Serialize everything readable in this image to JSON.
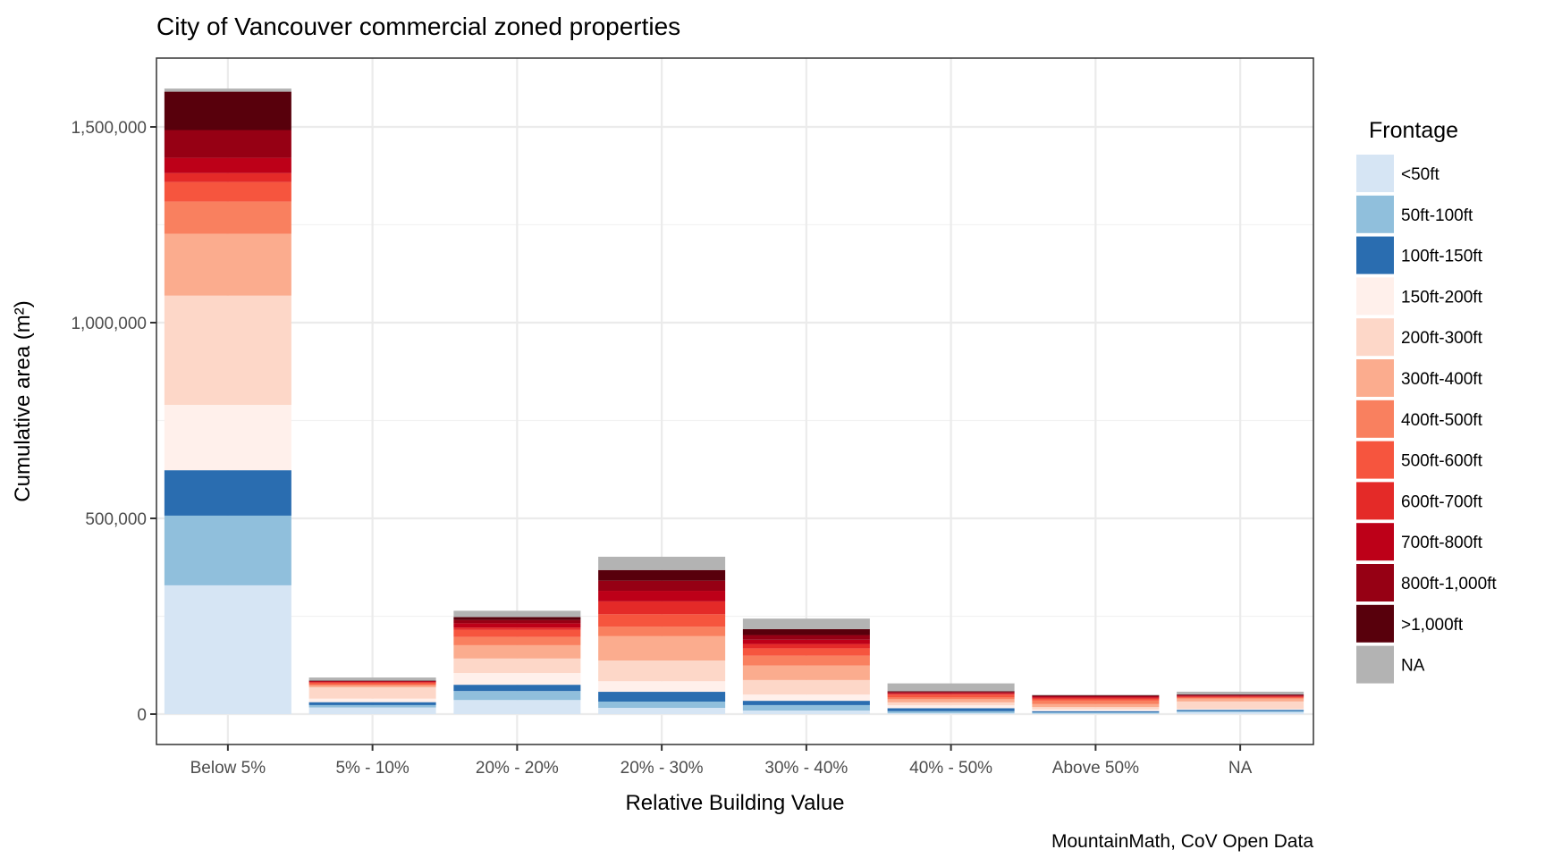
{
  "chart_data": {
    "type": "bar",
    "stacked": true,
    "title": "City of Vancouver commercial zoned properties",
    "xlabel": "Relative Building Value",
    "ylabel": "Cumulative area (m²)",
    "caption": "MountainMath, CoV Open Data",
    "ylim": [
      -80000,
      1660000
    ],
    "yticks": [
      0,
      500000,
      1000000,
      1500000
    ],
    "ytick_labels": [
      "0",
      "500,000",
      "1,000,000",
      "1,500,000"
    ],
    "grid": true,
    "legend": {
      "title": "Frontage",
      "position": "right"
    },
    "categories": [
      "Below 5%",
      "5% - 10%",
      "20% - 20%",
      "20% - 30%",
      "30% - 40%",
      "40% - 50%",
      "Above 50%",
      "NA"
    ],
    "series": [
      {
        "name": "<50ft",
        "color": "#d6e5f4",
        "values": [
          329000,
          17000,
          36000,
          16000,
          9000,
          2500,
          1500,
          5000
        ]
      },
      {
        "name": "50ft-100ft",
        "color": "#90bfdc",
        "values": [
          178000,
          6000,
          23000,
          16000,
          14000,
          5000,
          3000,
          3000
        ]
      },
      {
        "name": "100ft-150ft",
        "color": "#2a6db0",
        "values": [
          116000,
          7500,
          16000,
          25000,
          11000,
          7500,
          3000,
          3000
        ]
      },
      {
        "name": "150ft-200ft",
        "color": "#fff0eb",
        "values": [
          167000,
          9000,
          30000,
          27000,
          16000,
          7500,
          4500,
          2300
        ]
      },
      {
        "name": "200ft-300ft",
        "color": "#fdd7c8",
        "values": [
          279000,
          29000,
          37000,
          53000,
          37000,
          7500,
          6000,
          19000
        ]
      },
      {
        "name": "300ft-400ft",
        "color": "#fbac8e",
        "values": [
          158000,
          4500,
          34000,
          62000,
          37000,
          8000,
          7500,
          7000
        ]
      },
      {
        "name": "400ft-500ft",
        "color": "#f9805f",
        "values": [
          82000,
          3500,
          21000,
          24000,
          25000,
          4500,
          9000,
          2000
        ]
      },
      {
        "name": "500ft-600ft",
        "color": "#f6553e",
        "values": [
          50000,
          3500,
          18000,
          32000,
          19000,
          7000,
          4500,
          2000
        ]
      },
      {
        "name": "600ft-700ft",
        "color": "#e42a28",
        "values": [
          23000,
          2000,
          6000,
          33000,
          11000,
          2500,
          3000,
          2000
        ]
      },
      {
        "name": "700ft-800ft",
        "color": "#bd0018",
        "values": [
          39000,
          1500,
          11000,
          27000,
          11000,
          2500,
          2500,
          2000
        ]
      },
      {
        "name": "800ft-1,000ft",
        "color": "#960014",
        "values": [
          71000,
          1000,
          8500,
          26000,
          12000,
          2000,
          2000,
          1500
        ]
      },
      {
        "name": ">1,000ft",
        "color": "#58000c",
        "values": [
          98000,
          1000,
          7500,
          27000,
          15000,
          2000,
          2000,
          1500
        ]
      },
      {
        "name": "NA",
        "color": "#b3b3b3",
        "values": [
          8000,
          8000,
          16000,
          34000,
          27000,
          20000,
          700,
          7000
        ]
      }
    ]
  }
}
